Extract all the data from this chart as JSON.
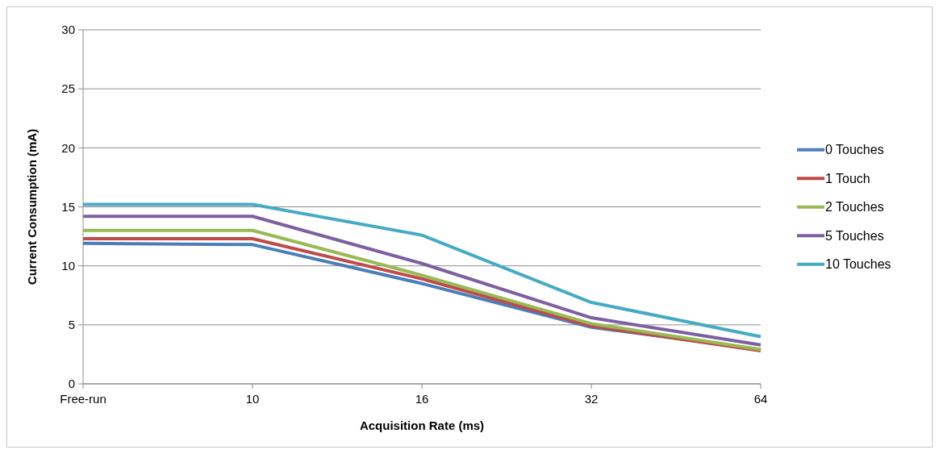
{
  "chart_data": {
    "type": "line",
    "xlabel": "Acquisition Rate (ms)",
    "ylabel": "Current Consumption (mA)",
    "categories": [
      "Free-run",
      "10",
      "16",
      "32",
      "64"
    ],
    "series": [
      {
        "name": "0 Touches",
        "color": "#4a7ebb",
        "values": [
          11.9,
          11.8,
          8.5,
          4.8,
          2.9
        ]
      },
      {
        "name": "1 Touch",
        "color": "#be4b48",
        "values": [
          12.3,
          12.3,
          8.9,
          4.9,
          2.8
        ]
      },
      {
        "name": "2 Touches",
        "color": "#98b954",
        "values": [
          13.0,
          13.0,
          9.2,
          5.1,
          2.9
        ]
      },
      {
        "name": "5 Touches",
        "color": "#7d60a0",
        "values": [
          14.2,
          14.2,
          10.2,
          5.6,
          3.3
        ]
      },
      {
        "name": "10 Touches",
        "color": "#46aac5",
        "values": [
          15.2,
          15.2,
          12.6,
          6.9,
          4.0
        ]
      }
    ],
    "ylim": [
      0,
      30
    ],
    "yticks": [
      0,
      5,
      10,
      15,
      20,
      25,
      30
    ],
    "grid": "y",
    "legend": "right",
    "marker": "none",
    "line_style": "solid"
  }
}
